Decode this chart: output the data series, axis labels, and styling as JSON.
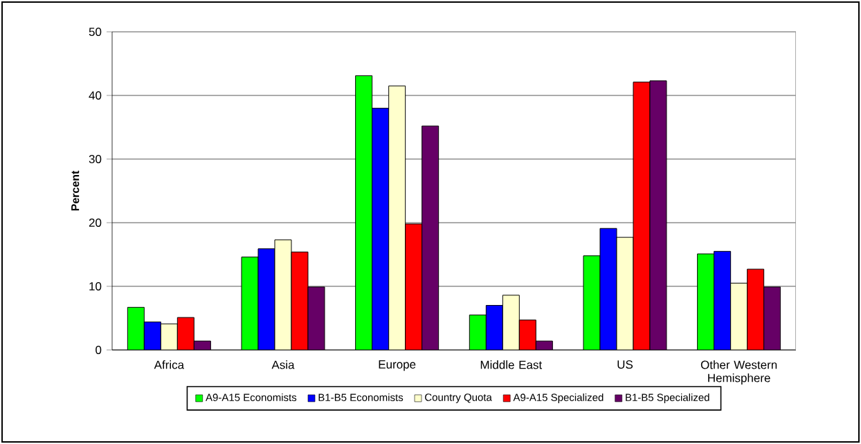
{
  "chart_data": {
    "type": "bar",
    "ylabel": "Percent",
    "categories": [
      "Africa",
      "Asia",
      "Europe",
      "Middle East",
      "US",
      "Other  Western Hemisphere"
    ],
    "series": [
      {
        "name": "A9-A15 Economists",
        "color": "#00ff00",
        "values": [
          6.7,
          14.6,
          43.1,
          5.5,
          14.8,
          15.1
        ]
      },
      {
        "name": "B1-B5 Economists",
        "color": "#0000ff",
        "values": [
          4.4,
          15.9,
          38.0,
          7.0,
          19.1,
          15.5
        ]
      },
      {
        "name": "Country  Quota",
        "color": "#ffffcc",
        "values": [
          4.1,
          17.3,
          41.5,
          8.6,
          17.7,
          10.5
        ]
      },
      {
        "name": "A9-A15 Specialized",
        "color": "#ff0000",
        "values": [
          5.1,
          15.4,
          19.8,
          4.7,
          42.1,
          12.7
        ]
      },
      {
        "name": "B1-B5 Specialized",
        "color": "#660066",
        "values": [
          1.4,
          9.9,
          35.2,
          1.4,
          42.3,
          9.9
        ]
      }
    ],
    "ylim": [
      0,
      50
    ],
    "yticks": [
      0,
      10,
      20,
      30,
      40,
      50
    ],
    "grid": "y",
    "legend": "bottom"
  }
}
